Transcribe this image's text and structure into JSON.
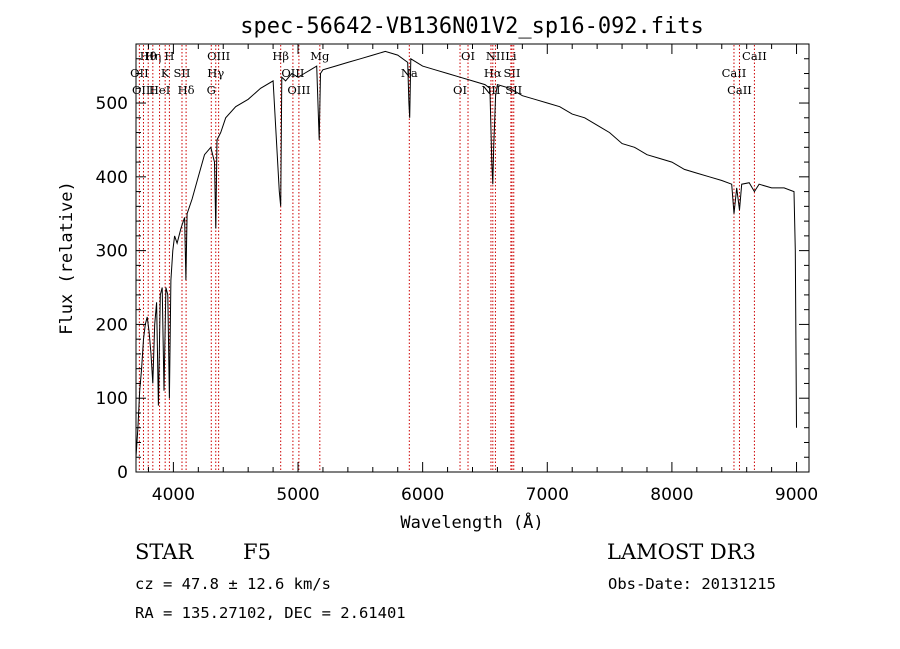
{
  "chart_data": {
    "type": "line",
    "title": "spec-56642-VB136N01V2_sp16-092.fits",
    "xlabel": "Wavelength (Å)",
    "ylabel": "Flux (relative)",
    "xlim": [
      3700,
      9100
    ],
    "ylim": [
      0,
      580
    ],
    "xticks": [
      4000,
      5000,
      6000,
      7000,
      8000,
      9000
    ],
    "yticks": [
      0,
      100,
      200,
      300,
      400,
      500
    ],
    "series": [
      {
        "name": "spectrum",
        "x": [
          3700,
          3715,
          3730,
          3745,
          3760,
          3775,
          3790,
          3805,
          3820,
          3835,
          3850,
          3865,
          3880,
          3895,
          3910,
          3925,
          3940,
          3955,
          3968,
          3980,
          3995,
          4010,
          4030,
          4060,
          4090,
          4100,
          4110,
          4150,
          4200,
          4250,
          4300,
          4330,
          4340,
          4350,
          4380,
          4420,
          4500,
          4600,
          4700,
          4800,
          4850,
          4861,
          4870,
          4900,
          4950,
          5000,
          5050,
          5100,
          5150,
          5170,
          5180,
          5200,
          5300,
          5400,
          5500,
          5600,
          5700,
          5800,
          5880,
          5890,
          5896,
          5905,
          6000,
          6100,
          6200,
          6300,
          6400,
          6500,
          6540,
          6555,
          6563,
          6570,
          6585,
          6600,
          6700,
          6800,
          6900,
          7000,
          7100,
          7200,
          7300,
          7400,
          7500,
          7600,
          7700,
          7800,
          7900,
          8000,
          8100,
          8200,
          8300,
          8400,
          8480,
          8498,
          8520,
          8542,
          8560,
          8620,
          8662,
          8700,
          8800,
          8900,
          8980,
          8990,
          9000
        ],
        "values": [
          20,
          60,
          110,
          140,
          180,
          200,
          210,
          190,
          160,
          120,
          200,
          230,
          90,
          240,
          250,
          110,
          250,
          240,
          100,
          260,
          300,
          320,
          310,
          330,
          345,
          260,
          350,
          370,
          400,
          430,
          440,
          420,
          330,
          450,
          460,
          480,
          495,
          505,
          520,
          530,
          380,
          360,
          535,
          530,
          540,
          535,
          540,
          545,
          550,
          450,
          540,
          545,
          550,
          555,
          560,
          565,
          570,
          565,
          555,
          500,
          480,
          560,
          550,
          545,
          540,
          535,
          530,
          525,
          520,
          420,
          390,
          440,
          510,
          525,
          520,
          510,
          505,
          500,
          495,
          485,
          480,
          470,
          460,
          445,
          440,
          430,
          425,
          420,
          410,
          405,
          400,
          395,
          390,
          350,
          385,
          355,
          390,
          392,
          380,
          390,
          385,
          385,
          380,
          300,
          60
        ]
      }
    ],
    "spectral_lines": [
      {
        "label": "Hθ",
        "wavelength": 3798
      },
      {
        "label": "OII",
        "wavelength": 3727
      },
      {
        "label": "OIII",
        "wavelength": 3760
      },
      {
        "label": "Hη",
        "wavelength": 3835
      },
      {
        "label": "K",
        "wavelength": 3934
      },
      {
        "label": "HeI",
        "wavelength": 3889
      },
      {
        "label": "H",
        "wavelength": 3968
      },
      {
        "label": "SII",
        "wavelength": 4069
      },
      {
        "label": "Hδ",
        "wavelength": 4102
      },
      {
        "label": "OIII",
        "wavelength": 4363
      },
      {
        "label": "Hγ",
        "wavelength": 4340
      },
      {
        "label": "G",
        "wavelength": 4304
      },
      {
        "label": "Hβ",
        "wavelength": 4861
      },
      {
        "label": "OIII",
        "wavelength": 4959
      },
      {
        "label": "OIII",
        "wavelength": 5007
      },
      {
        "label": "Mg",
        "wavelength": 5175
      },
      {
        "label": "Na",
        "wavelength": 5893
      },
      {
        "label": "OI",
        "wavelength": 6300
      },
      {
        "label": "OI",
        "wavelength": 6364
      },
      {
        "label": "Hα",
        "wavelength": 6563
      },
      {
        "label": "NII",
        "wavelength": 6548
      },
      {
        "label": "NII",
        "wavelength": 6584
      },
      {
        "label": "SII",
        "wavelength": 6717
      },
      {
        "label": "SII",
        "wavelength": 6731
      },
      {
        "label": "Li",
        "wavelength": 6708
      },
      {
        "label": "CaII",
        "wavelength": 8498
      },
      {
        "label": "CaII",
        "wavelength": 8542
      },
      {
        "label": "CaII",
        "wavelength": 8662
      }
    ]
  },
  "info": {
    "object_class": "STAR",
    "subclass": "F5",
    "survey": "LAMOST DR3",
    "velocity": "cz = 47.8 ± 12.6 km/s",
    "obs_date": "Obs-Date: 20131215",
    "coords": "RA = 135.27102, DEC =    2.61401"
  },
  "colors": {
    "line": "#000000",
    "marker": "#cc0000"
  }
}
